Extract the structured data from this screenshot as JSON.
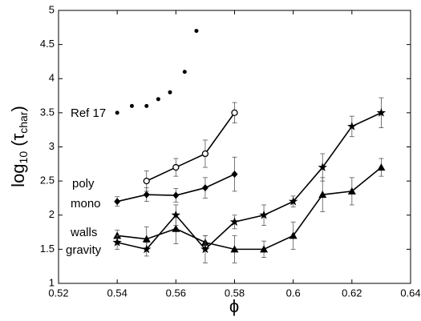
{
  "chart_data": {
    "type": "line",
    "xlabel": "ϕ",
    "ylabel": [
      "log",
      "10",
      " (τ",
      "char",
      ")"
    ],
    "xlim": [
      0.52,
      0.64
    ],
    "xticks": [
      0.52,
      0.54,
      0.56,
      0.58,
      0.6,
      0.62,
      0.64
    ],
    "ylim": [
      1,
      5
    ],
    "yticks": [
      1,
      1.5,
      2,
      2.5,
      3,
      3.5,
      4,
      4.5,
      5
    ],
    "series": [
      {
        "name": "Ref 17",
        "color": "#000000",
        "marker": "dot",
        "line": false,
        "x": [
          0.54,
          0.545,
          0.55,
          0.554,
          0.558,
          0.563,
          0.567
        ],
        "values": [
          3.5,
          3.6,
          3.6,
          3.7,
          3.8,
          4.1,
          4.7
        ]
      },
      {
        "name": "poly",
        "color": "#000000",
        "marker": "circle",
        "line": true,
        "x": [
          0.55,
          0.56,
          0.57,
          0.58
        ],
        "values": [
          2.5,
          2.7,
          2.9,
          3.5
        ],
        "errors": [
          0.15,
          0.13,
          0.2,
          0.15
        ]
      },
      {
        "name": "mono",
        "color": "#000000",
        "marker": "diamond",
        "line": true,
        "x": [
          0.54,
          0.55,
          0.56,
          0.57,
          0.58
        ],
        "values": [
          2.2,
          2.3,
          2.29,
          2.4,
          2.6
        ],
        "errors": [
          0.07,
          0.1,
          0.1,
          0.15,
          0.25
        ]
      },
      {
        "name": "walls",
        "color": "#000000",
        "marker": "triangle",
        "line": true,
        "x": [
          0.54,
          0.55,
          0.56,
          0.57,
          0.58,
          0.59,
          0.6,
          0.61,
          0.62,
          0.63
        ],
        "values": [
          1.7,
          1.65,
          1.8,
          1.6,
          1.5,
          1.5,
          1.7,
          2.3,
          2.35,
          2.7
        ],
        "errors": [
          0.08,
          0.18,
          0.22,
          0.1,
          0.2,
          0.12,
          0.2,
          0.25,
          0.2,
          0.13
        ]
      },
      {
        "name": "gravity",
        "color": "#000000",
        "marker": "star",
        "line": true,
        "x": [
          0.54,
          0.55,
          0.56,
          0.57,
          0.58,
          0.59,
          0.6,
          0.61,
          0.62,
          0.63
        ],
        "values": [
          1.6,
          1.5,
          2.0,
          1.5,
          1.9,
          2.0,
          2.2,
          2.7,
          3.3,
          3.5
        ],
        "errors": [
          0.1,
          0.1,
          0.15,
          0.2,
          0.1,
          0.15,
          0.08,
          0.2,
          0.15,
          0.22
        ]
      }
    ]
  }
}
